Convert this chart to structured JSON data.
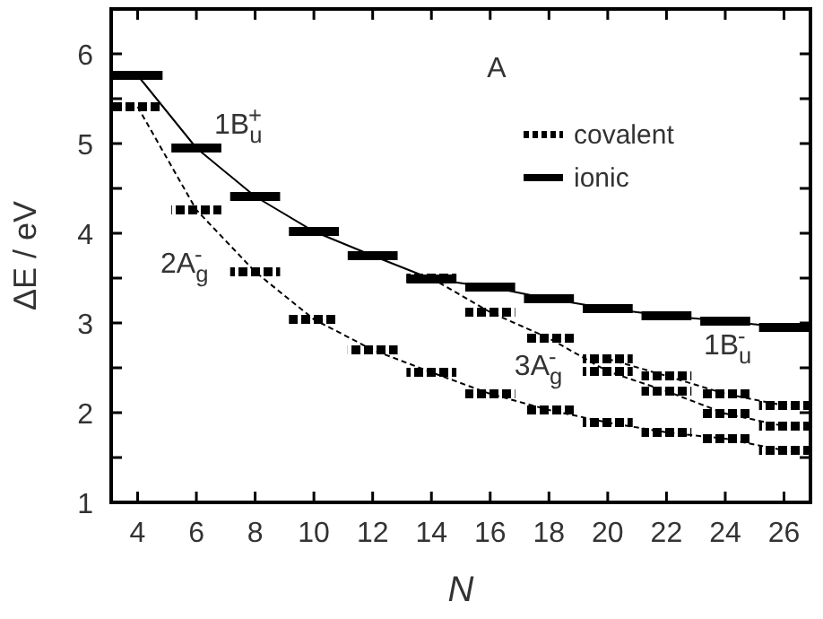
{
  "chart_data": {
    "type": "line",
    "xlabel": "N",
    "ylabel": "ΔE / eV",
    "xlim": [
      3.1,
      26.9
    ],
    "ylim": [
      1,
      6.5
    ],
    "xticks": [
      4,
      6,
      8,
      10,
      12,
      14,
      16,
      18,
      20,
      22,
      24,
      26
    ],
    "yticks": [
      1,
      {
        "value": 1.5,
        "label": null
      },
      2,
      {
        "value": 2.5,
        "label": null
      },
      3,
      {
        "value": 3.5,
        "label": null
      },
      4,
      {
        "value": 4.5,
        "label": null
      },
      5,
      {
        "value": 5.5,
        "label": null
      },
      6
    ],
    "legend": "top right",
    "series": [
      {
        "name": "covalent",
        "color": "#000000",
        "line_style": "dashed",
        "x": [
          4,
          6,
          8,
          10,
          12,
          14,
          16,
          18,
          20,
          22,
          24,
          26
        ],
        "values": [
          5.41,
          4.26,
          3.57,
          3.04,
          2.7,
          2.45,
          2.21,
          2.03,
          1.89,
          1.78,
          1.71,
          1.58
        ]
      },
      {
        "name": "ionic",
        "color": "#000000",
        "line_style": "solid",
        "x": [
          4,
          6,
          8,
          10,
          12,
          14,
          16,
          18,
          20,
          22,
          24,
          26
        ],
        "values": [
          5.76,
          4.95,
          4.41,
          4.02,
          3.75,
          3.49,
          3.4,
          3.27,
          3.16,
          3.08,
          3.02,
          2.95
        ]
      },
      {
        "color": "#000000",
        "line_style": "dashed",
        "x": [
          14,
          16,
          18,
          20,
          22,
          24,
          26
        ],
        "values": [
          3.5,
          3.12,
          2.83,
          2.46,
          2.24,
          1.99,
          1.85
        ]
      },
      {
        "color": "#000000",
        "line_style": "dashed",
        "x": [
          20,
          22,
          24,
          26
        ],
        "values": [
          2.6,
          2.41,
          2.21,
          2.08
        ]
      }
    ],
    "annotations": [
      "A",
      {
        "text": "1B$_{u}$$^{+}$",
        "x": 6,
        "y": 4.95
      },
      {
        "text": "2A$_{g}$$^{-}$",
        "x": 6,
        "y": 4.26
      },
      {
        "text": "3A$_{g}$$^{-}$",
        "x": 20,
        "y": 2.46
      },
      {
        "text": "1B$_{u}$$^{-}$",
        "x": 24,
        "y": 2.21
      }
    ]
  }
}
